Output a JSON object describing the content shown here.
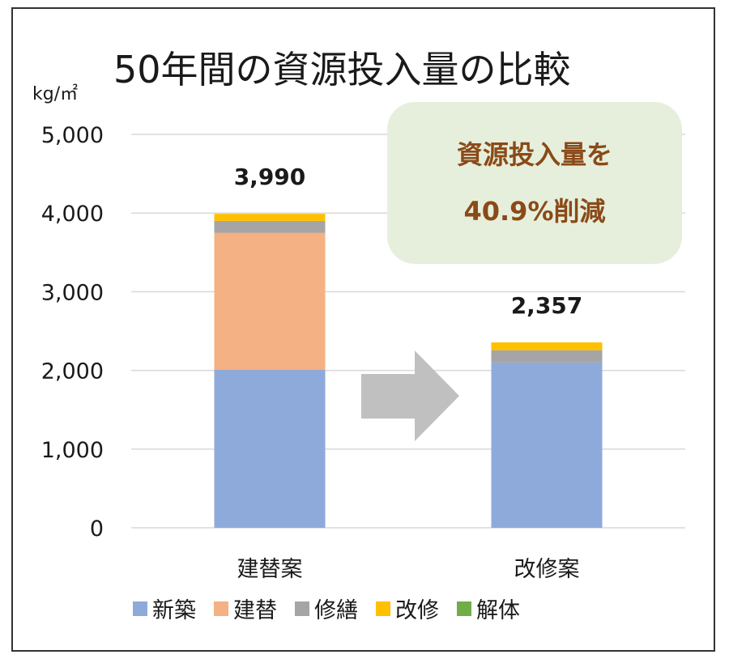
{
  "chart_data": {
    "type": "bar",
    "stacked": true,
    "title": "50年間の資源投入量の比較",
    "ylabel": "kg/㎡",
    "ylim": [
      0,
      5000
    ],
    "yticks": [
      "0",
      "1,000",
      "2,000",
      "3,000",
      "4,000",
      "5,000"
    ],
    "grid": true,
    "legend_position": "bottom",
    "categories": [
      "建替案",
      "改修案"
    ],
    "series": [
      {
        "name": "新築",
        "color": "#8eaadb",
        "values": [
          2010,
          2100
        ]
      },
      {
        "name": "建替",
        "color": "#f4b183",
        "values": [
          1740,
          0
        ]
      },
      {
        "name": "修繕",
        "color": "#a5a5a5",
        "values": [
          150,
          157
        ]
      },
      {
        "name": "改修",
        "color": "#ffc000",
        "values": [
          90,
          100
        ]
      },
      {
        "name": "解体",
        "color": "#70ad47",
        "values": [
          0,
          0
        ]
      }
    ],
    "totals": [
      "3,990",
      "2,357"
    ]
  },
  "callout": {
    "line1": "資源投入量を",
    "line2": "40.9%削減"
  },
  "arrow_color": "#c0c0c0"
}
